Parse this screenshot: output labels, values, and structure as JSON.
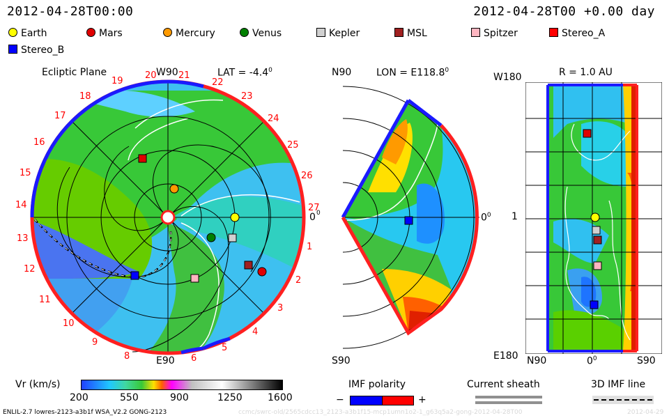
{
  "header": {
    "date_left": "2012-04-28T00:00",
    "date_right": "2012-04-28T00 +0.00 day"
  },
  "legend": [
    {
      "label": "Earth",
      "color": "#ffff00",
      "shape": "circle"
    },
    {
      "label": "Mars",
      "color": "#e00000",
      "shape": "circle"
    },
    {
      "label": "Mercury",
      "color": "#ff9a00",
      "shape": "circle"
    },
    {
      "label": "Venus",
      "color": "#008000",
      "shape": "circle"
    },
    {
      "label": "Kepler",
      "color": "#d0d0d0",
      "shape": "square"
    },
    {
      "label": "MSL",
      "color": "#a02020",
      "shape": "square"
    },
    {
      "label": "Spitzer",
      "color": "#ffb6c1",
      "shape": "square"
    },
    {
      "label": "Stereo_A",
      "color": "#ff0000",
      "shape": "square"
    },
    {
      "label": "Stereo_B",
      "color": "#0000ff",
      "shape": "square"
    }
  ],
  "ecliptic": {
    "title": "Ecliptic Plane",
    "top_label": "W90",
    "bottom_label": "E90",
    "right_label": "0",
    "lat_label": "LAT = -4.4",
    "lat_deg": "0",
    "right_deg": "0",
    "carrington": [
      "1",
      "2",
      "3",
      "4",
      "5",
      "6",
      "8",
      "9",
      "10",
      "11",
      "12",
      "13",
      "14",
      "15",
      "16",
      "17",
      "18",
      "19",
      "20",
      "21",
      "22",
      "23",
      "24",
      "25",
      "26",
      "27"
    ]
  },
  "meridional": {
    "top_label": "N90",
    "bottom_label": "S90",
    "lon_label": "LON = E118.8",
    "lon_deg": "0",
    "right_label": "0",
    "right_deg": "0"
  },
  "map": {
    "title": "R = 1.0 AU",
    "top_left": "W180",
    "bottom_left": "E180",
    "mid_left": "1",
    "bottom_labels": [
      "N90",
      "0",
      "S90"
    ],
    "zero_deg": "0"
  },
  "colorbar": {
    "label": "Vr (km/s)",
    "ticks": [
      "200",
      "550",
      "900",
      "1250",
      "1600"
    ]
  },
  "imf": {
    "label": "IMF polarity",
    "minus": "−",
    "plus": "+"
  },
  "sheath": {
    "label": "Current sheath"
  },
  "imf3d": {
    "label": "3D IMF line"
  },
  "footer": {
    "left": "ENLIL-2.7 lowres-2123-a3b1f WSA_V2.2 GONG-2123",
    "watermark": "ccmc/swrc-old/2565cdcc13_2123-a3b1f15-mcp1umn1o2-1_g63q5a2-gong-2012-04-28T00",
    "watermark_right": "2012-04-29"
  }
}
